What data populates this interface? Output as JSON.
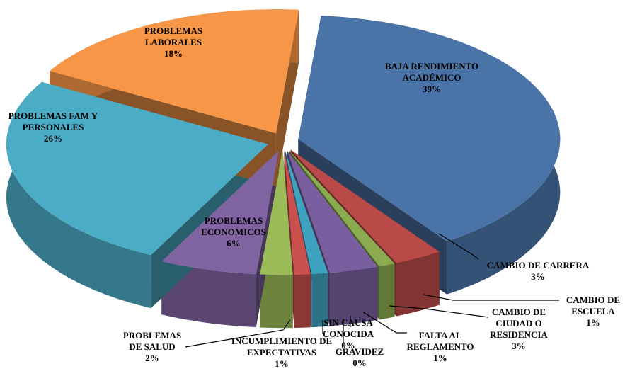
{
  "chart_data": {
    "type": "pie3d",
    "categories": [
      "BAJA RENDIMIENTO ACADÉMICO",
      "CAMBIO DE CARRERA",
      "CAMBIO DE ESCUELA",
      "CAMBIO DE CIUDAD O RESIDENCIA",
      "FALTA AL REGLAMENTO",
      "SIN CAUSA CONOCIDA",
      "GRAVIDEZ",
      "INCUMPLIMIENTO DE EXPECTATIVAS",
      "PROBLEMAS DE SALUD",
      "PROBLEMAS ECONOMICOS",
      "PROBLEMAS FAM Y PERSONALES",
      "PROBLEMAS LABORALES"
    ],
    "values": [
      39,
      3,
      1,
      3,
      1,
      0,
      0,
      1,
      2,
      6,
      26,
      18
    ],
    "value_labels": [
      "39%",
      "3%",
      "1%",
      "3%",
      "1%",
      "0%",
      "0%",
      "1%",
      "2%",
      "6%",
      "26%",
      "18%"
    ],
    "colors": [
      "#4a73a8",
      "#b94a48",
      "#8aab4f",
      "#7a5fa0",
      "#3ea3bf",
      "#e8892e",
      "#4f7fbf",
      "#c9504d",
      "#9bbb59",
      "#8064a2",
      "#4bacc6",
      "#f79646"
    ]
  }
}
